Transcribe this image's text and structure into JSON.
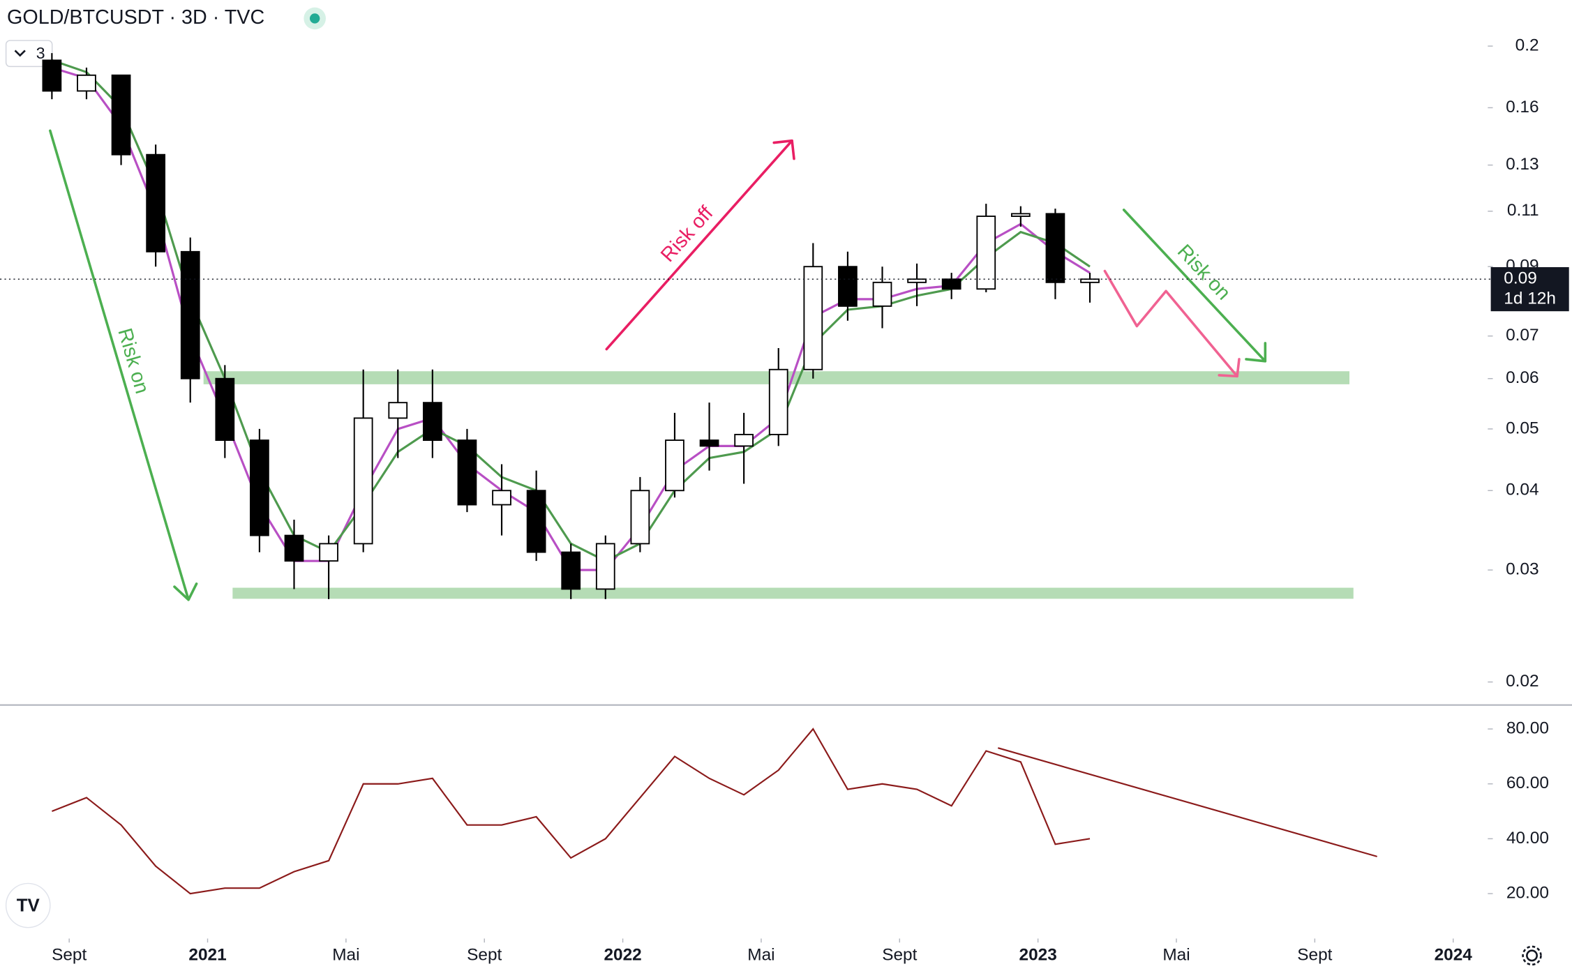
{
  "header": {
    "title": "GOLD/BTCUSDT · 3D · TVC",
    "collapse_label": "3"
  },
  "chart_data": [
    {
      "type": "candlestick",
      "x": [
        "2020-08",
        "2020-09",
        "2020-10",
        "2020-11",
        "2020-12",
        "2021-01",
        "2021-02",
        "2021-03",
        "2021-04",
        "2021-05",
        "2021-06",
        "2021-07",
        "2021-08",
        "2021-09",
        "2021-10",
        "2021-11",
        "2021-12",
        "2022-01",
        "2022-02",
        "2022-03",
        "2022-04",
        "2022-05",
        "2022-06",
        "2022-07",
        "2022-08",
        "2022-09",
        "2022-10",
        "2022-11",
        "2022-12",
        "2023-01",
        "2023-02"
      ],
      "open": [
        0.19,
        0.17,
        0.18,
        0.135,
        0.095,
        0.06,
        0.048,
        0.034,
        0.031,
        0.033,
        0.052,
        0.055,
        0.048,
        0.038,
        0.04,
        0.032,
        0.028,
        0.033,
        0.04,
        0.048,
        0.047,
        0.049,
        0.062,
        0.09,
        0.078,
        0.085,
        0.086,
        0.083,
        0.108,
        0.109,
        0.085
      ],
      "high": [
        0.195,
        0.185,
        0.18,
        0.14,
        0.1,
        0.063,
        0.05,
        0.036,
        0.034,
        0.062,
        0.062,
        0.062,
        0.05,
        0.044,
        0.043,
        0.033,
        0.034,
        0.042,
        0.053,
        0.055,
        0.053,
        0.067,
        0.098,
        0.095,
        0.09,
        0.091,
        0.088,
        0.113,
        0.112,
        0.111,
        0.088
      ],
      "low": [
        0.165,
        0.165,
        0.13,
        0.09,
        0.055,
        0.045,
        0.032,
        0.028,
        0.027,
        0.032,
        0.045,
        0.045,
        0.037,
        0.034,
        0.031,
        0.027,
        0.027,
        0.032,
        0.039,
        0.043,
        0.041,
        0.047,
        0.06,
        0.074,
        0.072,
        0.078,
        0.08,
        0.082,
        0.104,
        0.08,
        0.079
      ],
      "close": [
        0.17,
        0.18,
        0.135,
        0.095,
        0.06,
        0.048,
        0.034,
        0.031,
        0.033,
        0.052,
        0.055,
        0.048,
        0.038,
        0.04,
        0.032,
        0.028,
        0.033,
        0.04,
        0.048,
        0.047,
        0.049,
        0.062,
        0.09,
        0.078,
        0.085,
        0.086,
        0.083,
        0.108,
        0.109,
        0.085,
        0.086
      ],
      "up_color": "#ffffff",
      "down_color": "#000000",
      "series": [
        {
          "color": "#b84fc4",
          "values": [
            0.185,
            0.178,
            0.15,
            0.11,
            0.07,
            0.052,
            0.038,
            0.031,
            0.031,
            0.04,
            0.05,
            0.052,
            0.044,
            0.04,
            0.037,
            0.03,
            0.03,
            0.035,
            0.043,
            0.047,
            0.047,
            0.052,
            0.075,
            0.08,
            0.08,
            0.083,
            0.084,
            0.098,
            0.105,
            0.095,
            0.088
          ]
        },
        {
          "color": "#4e9a4e",
          "values": [
            0.19,
            0.182,
            0.16,
            0.12,
            0.08,
            0.06,
            0.043,
            0.034,
            0.032,
            0.038,
            0.046,
            0.05,
            0.047,
            0.042,
            0.04,
            0.033,
            0.031,
            0.033,
            0.04,
            0.045,
            0.046,
            0.05,
            0.068,
            0.077,
            0.078,
            0.081,
            0.083,
            0.093,
            0.102,
            0.098,
            0.09
          ]
        }
      ],
      "log_scale": true,
      "xlim": [
        "2020-07",
        "2024-02"
      ],
      "ylim": [
        0.0184,
        0.236
      ],
      "yticks": [
        0.02,
        0.03,
        0.04,
        0.05,
        0.06,
        0.07,
        0.09,
        0.11,
        0.13,
        0.16,
        0.2
      ],
      "last_price": {
        "value": 0.086,
        "label": "0.09"
      },
      "countdown": "1d 12h",
      "annotations": [
        "Risk on",
        "Risk off",
        "Risk on"
      ]
    },
    {
      "type": "line",
      "x": [
        "2020-08",
        "2020-09",
        "2020-10",
        "2020-11",
        "2020-12",
        "2021-01",
        "2021-02",
        "2021-03",
        "2021-04",
        "2021-05",
        "2021-06",
        "2021-07",
        "2021-08",
        "2021-09",
        "2021-10",
        "2021-11",
        "2021-12",
        "2022-01",
        "2022-02",
        "2022-03",
        "2022-04",
        "2022-05",
        "2022-06",
        "2022-07",
        "2022-08",
        "2022-09",
        "2022-10",
        "2022-11",
        "2022-12",
        "2023-01",
        "2023-02"
      ],
      "series": [
        {
          "color": "#8b1a1a",
          "values": [
            50,
            55,
            45,
            30,
            20,
            22,
            22,
            28,
            32,
            60,
            60,
            62,
            45,
            45,
            48,
            33,
            40,
            55,
            70,
            62,
            56,
            65,
            80,
            58,
            60,
            58,
            52,
            72,
            68,
            38,
            40
          ]
        }
      ],
      "xlim": [
        "2020-07",
        "2024-02"
      ],
      "ylim": [
        4,
        88
      ],
      "yticks": [
        {
          "value": 20,
          "label": "20.00"
        },
        {
          "value": 40,
          "label": "40.00"
        },
        {
          "value": 60,
          "label": "60.00"
        },
        {
          "value": 80,
          "label": "80.00"
        }
      ],
      "xticks": [
        {
          "value": "2020-09",
          "label": "Sept"
        },
        {
          "value": "2021-01",
          "label": "2021"
        },
        {
          "value": "2021-05",
          "label": "Mai"
        },
        {
          "value": "2021-09",
          "label": "Sept"
        },
        {
          "value": "2022-01",
          "label": "2022"
        },
        {
          "value": "2022-05",
          "label": "Mai"
        },
        {
          "value": "2022-09",
          "label": "Sept"
        },
        {
          "value": "2023-01",
          "label": "2023"
        },
        {
          "value": "2023-05",
          "label": "Mai"
        },
        {
          "value": "2023-09",
          "label": "Sept"
        },
        {
          "value": "2024-01",
          "label": "2024"
        }
      ]
    }
  ]
}
